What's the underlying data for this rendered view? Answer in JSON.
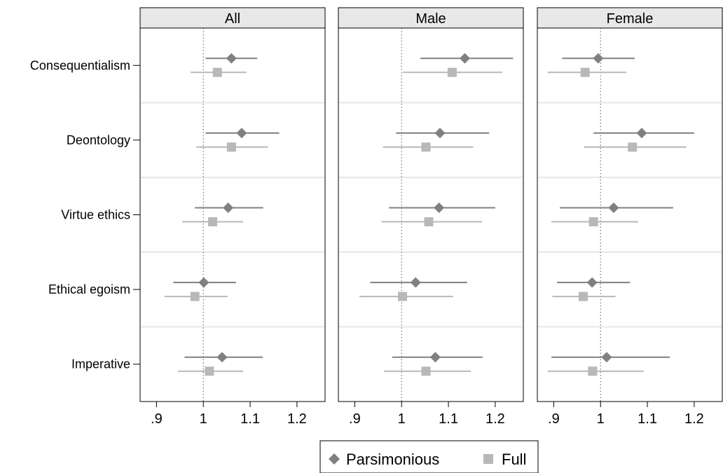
{
  "chart_data": {
    "type": "scatter",
    "subtype": "coefficient-plot",
    "panels": [
      "All",
      "Male",
      "Female"
    ],
    "categories": [
      "Consequentialism",
      "Deontology",
      "Virtue ethics",
      "Ethical egoism",
      "Imperative"
    ],
    "xlim": [
      0.865,
      1.26
    ],
    "x_ticks": [
      0.9,
      1.0,
      1.1,
      1.2
    ],
    "x_tick_labels": [
      ".9",
      "1",
      "1.1",
      "1.2"
    ],
    "reference_line": 1.0,
    "colors": {
      "Parsimonious": "#808080",
      "Full": "#b8b8b8",
      "panel_header": "#e8e8e8",
      "separator": "#e6e6e6"
    },
    "legend": {
      "position": "bottom-center",
      "entries": [
        {
          "label": "Parsimonious",
          "marker": "diamond"
        },
        {
          "label": "Full",
          "marker": "square"
        }
      ]
    },
    "series": [
      {
        "name": "Parsimonious",
        "marker": "diamond",
        "panels": [
          {
            "points": [
              {
                "est": 1.06,
                "lo": 1.005,
                "hi": 1.115
              },
              {
                "est": 1.082,
                "lo": 1.005,
                "hi": 1.162
              },
              {
                "est": 1.053,
                "lo": 0.982,
                "hi": 1.128
              },
              {
                "est": 1.001,
                "lo": 0.936,
                "hi": 1.07
              },
              {
                "est": 1.04,
                "lo": 0.96,
                "hi": 1.127
              }
            ]
          },
          {
            "points": [
              {
                "est": 1.135,
                "lo": 1.04,
                "hi": 1.238
              },
              {
                "est": 1.082,
                "lo": 0.988,
                "hi": 1.187
              },
              {
                "est": 1.08,
                "lo": 0.973,
                "hi": 1.2
              },
              {
                "est": 1.03,
                "lo": 0.933,
                "hi": 1.14
              },
              {
                "est": 1.072,
                "lo": 0.98,
                "hi": 1.173
              }
            ]
          },
          {
            "points": [
              {
                "est": 0.995,
                "lo": 0.918,
                "hi": 1.073
              },
              {
                "est": 1.088,
                "lo": 0.985,
                "hi": 1.2
              },
              {
                "est": 1.028,
                "lo": 0.913,
                "hi": 1.155
              },
              {
                "est": 0.982,
                "lo": 0.907,
                "hi": 1.063
              },
              {
                "est": 1.013,
                "lo": 0.895,
                "hi": 1.148
              }
            ]
          }
        ]
      },
      {
        "name": "Full",
        "marker": "square",
        "panels": [
          {
            "points": [
              {
                "est": 1.03,
                "lo": 0.973,
                "hi": 1.092
              },
              {
                "est": 1.06,
                "lo": 0.985,
                "hi": 1.138
              },
              {
                "est": 1.02,
                "lo": 0.955,
                "hi": 1.085
              },
              {
                "est": 0.982,
                "lo": 0.917,
                "hi": 1.052
              },
              {
                "est": 1.013,
                "lo": 0.946,
                "hi": 1.085
              }
            ]
          },
          {
            "points": [
              {
                "est": 1.108,
                "lo": 1.003,
                "hi": 1.215
              },
              {
                "est": 1.052,
                "lo": 0.96,
                "hi": 1.153
              },
              {
                "est": 1.058,
                "lo": 0.957,
                "hi": 1.172
              },
              {
                "est": 1.002,
                "lo": 0.91,
                "hi": 1.11
              },
              {
                "est": 1.052,
                "lo": 0.962,
                "hi": 1.148
              }
            ]
          },
          {
            "points": [
              {
                "est": 0.967,
                "lo": 0.887,
                "hi": 1.055
              },
              {
                "est": 1.068,
                "lo": 0.965,
                "hi": 1.183
              },
              {
                "est": 0.985,
                "lo": 0.895,
                "hi": 1.08
              },
              {
                "est": 0.963,
                "lo": 0.897,
                "hi": 1.032
              },
              {
                "est": 0.983,
                "lo": 0.887,
                "hi": 1.092
              }
            ]
          }
        ]
      }
    ]
  }
}
